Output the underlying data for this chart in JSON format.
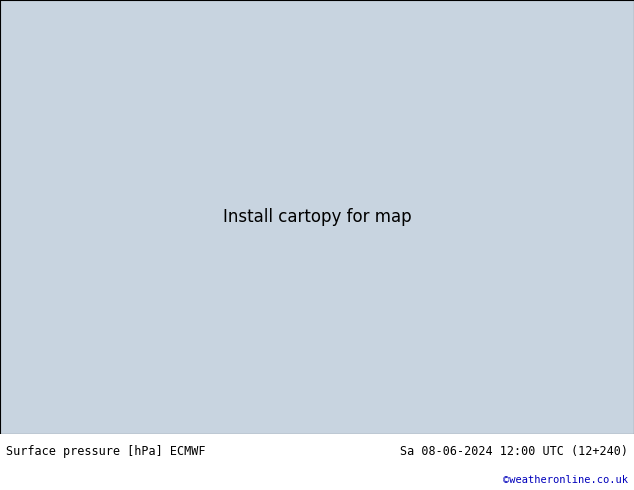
{
  "title_left": "Surface pressure [hPa] ECMWF",
  "title_right": "Sa 08-06-2024 12:00 UTC (12+240)",
  "credit": "©weatheronline.co.uk",
  "ocean_color": "#c8d4e0",
  "land_color": "#b8dcA0",
  "land_color2": "#b0d898",
  "mountain_color": "#a8b8a0",
  "figsize": [
    6.34,
    4.9
  ],
  "dpi": 100,
  "bottom_bar_color": "#ffffff",
  "title_color": "#000000",
  "credit_color": "#0000bb",
  "map_extent": [
    -25,
    45,
    30,
    72
  ]
}
